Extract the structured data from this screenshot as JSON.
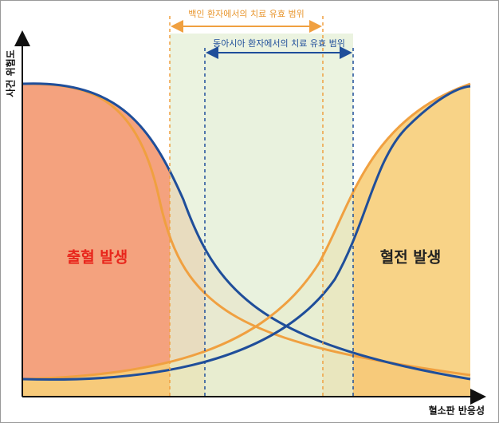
{
  "range_labels": {
    "white": "백인 환자에서의 치료 유효 범위",
    "east_asian": "동아시아 환자에서의 치료 유효 범위"
  },
  "axes": {
    "y_label": "사건 위험도",
    "x_label": "혈소판 반응성"
  },
  "regions": {
    "bleeding": "출혈 발생",
    "thrombosis": "혈전 발생"
  }
}
